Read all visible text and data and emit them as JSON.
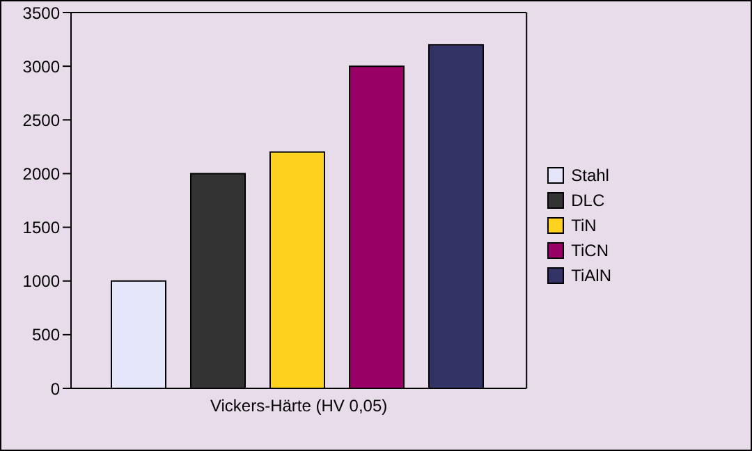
{
  "chart_data": {
    "type": "bar",
    "categories": [
      "Vickers-Härte (HV 0,05)"
    ],
    "series": [
      {
        "name": "Stahl",
        "color": "#e6e6fa",
        "values": [
          1000
        ]
      },
      {
        "name": "DLC",
        "color": "#333333",
        "values": [
          2000
        ]
      },
      {
        "name": "TiN",
        "color": "#ffd21f",
        "values": [
          2200
        ]
      },
      {
        "name": "TiCN",
        "color": "#990066",
        "values": [
          3000
        ]
      },
      {
        "name": "TiAlN",
        "color": "#333366",
        "values": [
          3200
        ]
      }
    ],
    "ylim": [
      0,
      3500
    ],
    "yticks": [
      0,
      500,
      1000,
      1500,
      2000,
      2500,
      3000,
      3500
    ],
    "legend": "right"
  }
}
